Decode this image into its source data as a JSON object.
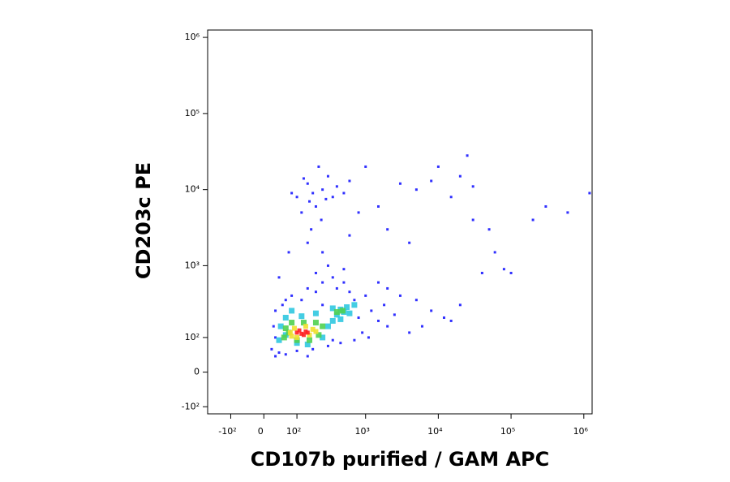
{
  "chart_data": {
    "type": "scatter",
    "scale": "biexponential",
    "xlabel": "CD107b purified / GAM APC",
    "ylabel": "CD203c PE",
    "xlim": [
      -230,
      1300000
    ],
    "ylim": [
      -130,
      1250000
    ],
    "xticks": [
      {
        "value": -100,
        "label": "-10²"
      },
      0,
      {
        "value": 100,
        "label": "10²"
      },
      {
        "value": 1000,
        "label": "10³"
      },
      {
        "value": 10000,
        "label": "10⁴"
      },
      {
        "value": 100000,
        "label": "10⁵"
      },
      {
        "value": 1000000,
        "label": "10⁶"
      }
    ],
    "yticks": [
      {
        "value": -100,
        "label": "-10²"
      },
      0,
      {
        "value": 100,
        "label": "10²"
      },
      {
        "value": 1000,
        "label": "10³"
      },
      {
        "value": 10000,
        "label": "10⁴"
      },
      {
        "value": 100000,
        "label": "10⁵"
      },
      {
        "value": 1000000,
        "label": "10⁶"
      }
    ],
    "series": [
      {
        "color": "#1a1aff",
        "x": [
          20,
          25,
          30,
          40,
          50,
          60,
          80,
          100,
          120,
          150,
          180,
          200,
          250,
          300,
          350,
          400,
          500,
          600,
          700,
          800,
          900,
          1000,
          1200,
          1500,
          1800,
          2000,
          2500,
          3000,
          700,
          450,
          1100,
          250,
          350,
          150,
          60,
          30,
          500,
          300,
          200,
          1500,
          2000,
          5000,
          8000,
          12000,
          6000,
          20000,
          15000,
          4000,
          30,
          40,
          100,
          150,
          200,
          250,
          300,
          180,
          120,
          350,
          400,
          220,
          160,
          280,
          130,
          500,
          600,
          80,
          240,
          170,
          1000,
          3000,
          5000,
          10000,
          15000,
          20000,
          25000,
          8000,
          30000,
          2000,
          4000,
          600,
          800,
          1500,
          50000,
          60000,
          80000,
          100000,
          200000,
          300000,
          600000,
          1200000,
          40000,
          30000,
          250,
          150,
          70
        ],
        "y": [
          60,
          150,
          250,
          50,
          300,
          45,
          400,
          55,
          350,
          500,
          60,
          450,
          600,
          70,
          700,
          500,
          600,
          450,
          350,
          200,
          120,
          400,
          250,
          180,
          300,
          150,
          220,
          400,
          90,
          80,
          100,
          300,
          90,
          40,
          350,
          100,
          900,
          1000,
          800,
          600,
          500,
          350,
          250,
          200,
          150,
          300,
          180,
          120,
          40,
          700,
          8000,
          12000,
          6000,
          10000,
          15000,
          9000,
          5000,
          8000,
          11000,
          20000,
          7000,
          7500,
          14000,
          9000,
          13000,
          9000,
          4000,
          3000,
          20000,
          12000,
          10000,
          20000,
          8000,
          15000,
          28000,
          13000,
          11000,
          3000,
          2000,
          2500,
          5000,
          6000,
          3000,
          1500,
          900,
          800,
          4000,
          6000,
          5000,
          9000,
          800,
          4000,
          1500,
          2000,
          1500
        ]
      },
      {
        "color": "#30c8e0",
        "x": [
          40,
          45,
          60,
          80,
          100,
          150,
          250,
          300,
          350,
          400,
          450,
          500,
          550,
          600,
          450,
          200,
          120,
          60,
          700,
          350
        ],
        "y": [
          90,
          150,
          200,
          250,
          80,
          75,
          100,
          150,
          180,
          220,
          260,
          240,
          280,
          230,
          190,
          230,
          210,
          110,
          300,
          270
        ]
      },
      {
        "color": "#50d050",
        "x": [
          55,
          60,
          80,
          100,
          160,
          220,
          250,
          200,
          130,
          70,
          400,
          480
        ],
        "y": [
          100,
          140,
          170,
          90,
          90,
          110,
          150,
          170,
          170,
          120,
          240,
          250
        ]
      },
      {
        "color": "#f0e030",
        "x": [
          75,
          90,
          100,
          160,
          180,
          140,
          80,
          200
        ],
        "y": [
          120,
          140,
          100,
          110,
          135,
          150,
          105,
          125
        ]
      },
      {
        "color": "#ff2020",
        "x": [
          100,
          120,
          140,
          110,
          130,
          150
        ],
        "y": [
          120,
          115,
          125,
          130,
          110,
          120
        ]
      }
    ]
  }
}
